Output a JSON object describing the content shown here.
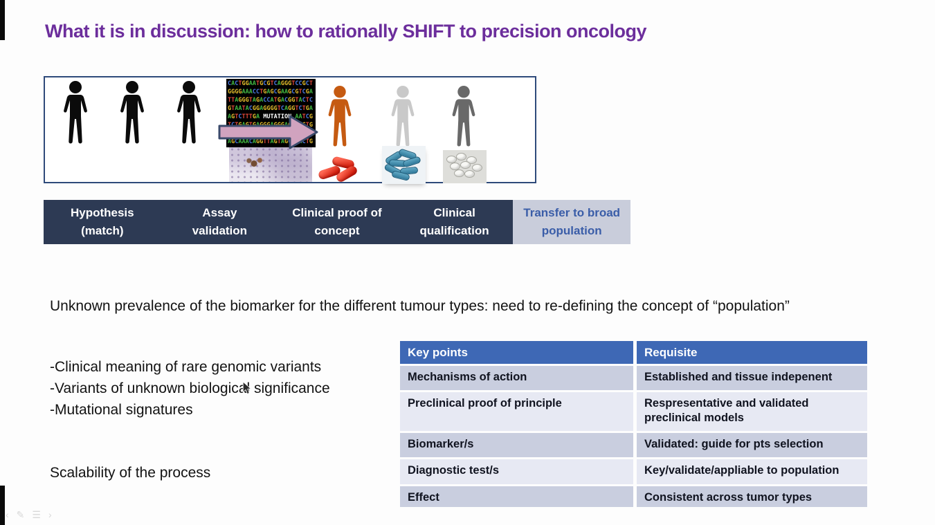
{
  "slide": {
    "title": "What it is in discussion: how to rationally SHIFT to precision oncology",
    "statement": "Unknown prevalence of the biomarker for the different tumour types: need to re-defining the concept of “population”",
    "bullets": [
      "-Clinical meaning of rare genomic variants",
      "-Variants of unknown biological significance",
      "-Mutational signatures"
    ],
    "scalability_note": "Scalability of the process"
  },
  "figure": {
    "mutation_label": "MUTATION",
    "dna_rows": [
      "CACTGGAATGCGTCAGGGTCCGCT",
      "GGGGAAACCTGAGCGAAGCGTCGA",
      "TTAGGGTAGACCATGACGGTACTC",
      "GTAATACGGAGGGGTCAGGTCTGA",
      "AGTCTTTGA MUTATION AATCG",
      "TCTGAGTGAGGGAGGGAGATGGTG",
      "GGAATACCCATGAGGAGGATCTGT",
      "AGCAAACAGGTTAGTAGCTGACTG"
    ],
    "left_persons": [
      "patient",
      "patient",
      "patient"
    ],
    "right_persons": [
      "matched-patient-orange",
      "patient-light-gray",
      "patient-dark-gray"
    ]
  },
  "pipeline": {
    "stages": [
      {
        "lines": [
          "Hypothesis",
          "(match)"
        ],
        "active": false
      },
      {
        "lines": [
          "Assay",
          "validation"
        ],
        "active": false
      },
      {
        "lines": [
          "Clinical proof of",
          "concept"
        ],
        "active": false
      },
      {
        "lines": [
          "Clinical",
          "qualification"
        ],
        "active": false
      },
      {
        "lines": [
          "Transfer to broad",
          "population"
        ],
        "active": true
      }
    ]
  },
  "table": {
    "headers": [
      "Key points",
      "Requisite"
    ],
    "rows": [
      {
        "key_point": "Mechanisms of action",
        "requisite": "Established and tissue indepenent"
      },
      {
        "key_point": "Preclinical proof of principle",
        "requisite": "Respresentative and validated preclinical models"
      },
      {
        "key_point": "Biomarker/s",
        "requisite": "Validated: guide for pts selection"
      },
      {
        "key_point": "Diagnostic test/s",
        "requisite": "Key/validate/appliable to population"
      },
      {
        "key_point": "Effect",
        "requisite": "Consistent across tumor types"
      }
    ]
  },
  "presenter_controls": {
    "previous": "‹",
    "pen": "✎",
    "menu": "☰",
    "next": "›"
  },
  "colors": {
    "title": "#6C2E9C",
    "pipeline_bar": "#2D3A54",
    "pipeline_active_bg": "#C9CDDB",
    "pipeline_active_text": "#3A5DA8",
    "table_header_bg": "#3E68B5",
    "table_row_odd": "#C9CEDF",
    "table_row_even": "#E7E9F3",
    "figure_border": "#2E4A7A",
    "person_orange": "#C55A11",
    "arrow_fill": "#D1A3BF"
  }
}
